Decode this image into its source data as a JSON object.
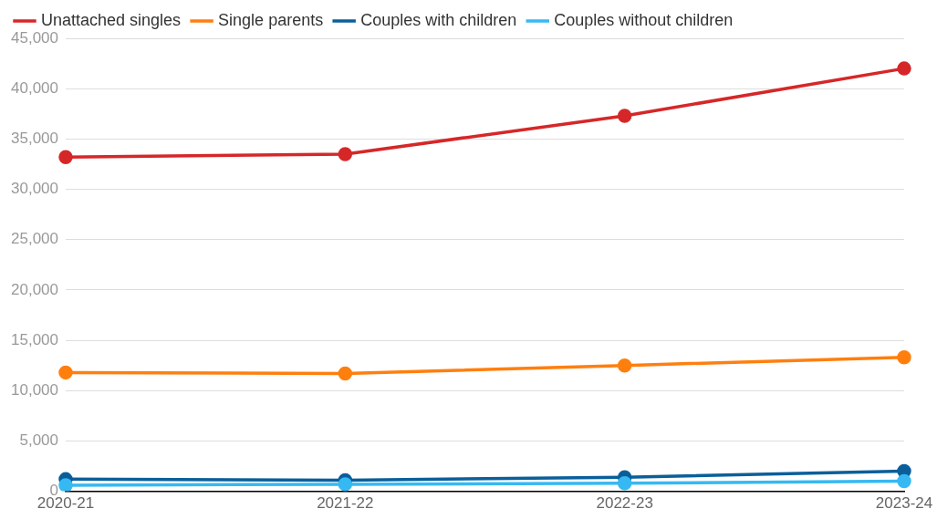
{
  "chart_data": {
    "type": "line",
    "categories": [
      "2020-21",
      "2021-22",
      "2022-23",
      "2023-24"
    ],
    "series": [
      {
        "name": "Unattached singles",
        "color": "#d62728",
        "values": [
          33200,
          33500,
          37300,
          42000
        ]
      },
      {
        "name": "Single parents",
        "color": "#ff7f0e",
        "values": [
          11800,
          11700,
          12500,
          13300
        ]
      },
      {
        "name": "Couples with children",
        "color": "#0a5f9a",
        "values": [
          1200,
          1100,
          1400,
          2000
        ]
      },
      {
        "name": "Couples without children",
        "color": "#36b9f2",
        "values": [
          600,
          700,
          800,
          1000
        ]
      }
    ],
    "ylim": [
      0,
      45000
    ],
    "yticks": [
      {
        "value": 0,
        "label": "0"
      },
      {
        "value": 5000,
        "label": "5,000"
      },
      {
        "value": 10000,
        "label": "10,000"
      },
      {
        "value": 15000,
        "label": "15,000"
      },
      {
        "value": 20000,
        "label": "20,000"
      },
      {
        "value": 25000,
        "label": "25,000"
      },
      {
        "value": 30000,
        "label": "30,000"
      },
      {
        "value": 35000,
        "label": "35,000"
      },
      {
        "value": 40000,
        "label": "40,000"
      },
      {
        "value": 45000,
        "label": "45,000"
      }
    ],
    "grid": "y",
    "legend": "top left",
    "marker": "circle",
    "line_style": "solid"
  }
}
